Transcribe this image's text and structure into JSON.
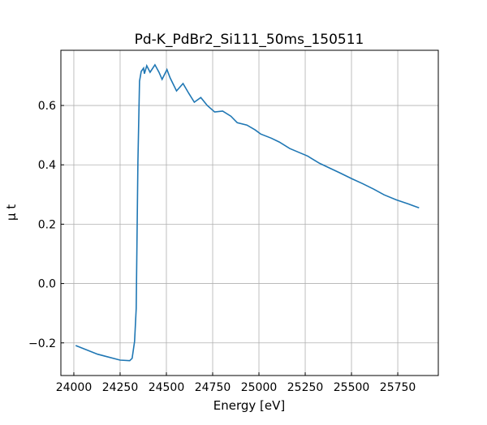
{
  "chart_data": {
    "type": "line",
    "title": "Pd-K_PdBr2_Si111_50ms_150511",
    "xlabel": "Energy [eV]",
    "ylabel": "μ t",
    "xlim": [
      23930,
      25969
    ],
    "ylim": [
      -0.31,
      0.786
    ],
    "grid": true,
    "xticks": [
      24000,
      24250,
      24500,
      24750,
      25000,
      25250,
      25500,
      25750
    ],
    "yticks": [
      -0.2,
      0.0,
      0.2,
      0.4,
      0.6
    ],
    "ytick_labels": [
      "−0.2",
      "0.0",
      "0.2",
      "0.4",
      "0.6"
    ],
    "series": [
      {
        "name": "mu t",
        "color": "#1f77b4",
        "x": [
          24010,
          24128,
          24250,
          24302,
          24315,
          24328,
          24337,
          24346,
          24355,
          24364,
          24377,
          24381,
          24394,
          24412,
          24438,
          24460,
          24477,
          24503,
          24520,
          24555,
          24590,
          24621,
          24651,
          24686,
          24721,
          24761,
          24804,
          24848,
          24883,
          24935,
          24979,
          25009,
          25066,
          25110,
          25166,
          25219,
          25262,
          25328,
          25393,
          25437,
          25502,
          25559,
          25620,
          25676,
          25742,
          25808,
          25865
        ],
        "y": [
          -0.209,
          -0.238,
          -0.258,
          -0.26,
          -0.252,
          -0.195,
          -0.085,
          0.408,
          0.682,
          0.715,
          0.726,
          0.707,
          0.734,
          0.712,
          0.737,
          0.712,
          0.688,
          0.721,
          0.693,
          0.649,
          0.674,
          0.641,
          0.611,
          0.627,
          0.6,
          0.578,
          0.581,
          0.564,
          0.542,
          0.534,
          0.518,
          0.504,
          0.49,
          0.477,
          0.455,
          0.441,
          0.43,
          0.405,
          0.386,
          0.373,
          0.353,
          0.337,
          0.318,
          0.299,
          0.282,
          0.268,
          0.255
        ]
      }
    ]
  }
}
